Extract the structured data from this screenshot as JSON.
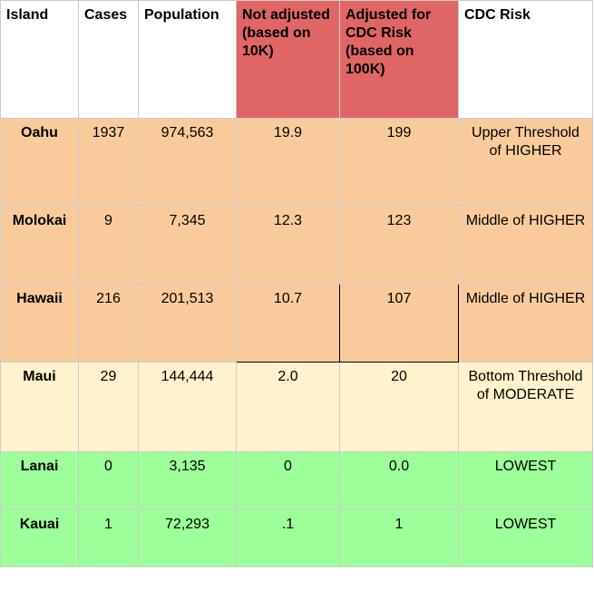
{
  "table": {
    "headers": [
      "Island",
      "Cases",
      "Population",
      "Not adjusted (based on 10K)",
      "Adjusted for CDC Risk (based on 100K)",
      "CDC Risk"
    ],
    "header_colors": [
      "#ffffff",
      "#ffffff",
      "#ffffff",
      "#e06666",
      "#e06666",
      "#ffffff"
    ],
    "rows": [
      {
        "island": "Oahu",
        "cases": "1937",
        "population": "974,563",
        "not_adjusted": "19.9",
        "adjusted": "199",
        "risk": "Upper Threshold of HIGHER",
        "color": "#f9cb9c"
      },
      {
        "island": "Molokai",
        "cases": "9",
        "population": "7,345",
        "not_adjusted": "12.3",
        "adjusted": "123",
        "risk": "Middle of HIGHER",
        "color": "#f9cb9c"
      },
      {
        "island": "Hawaii",
        "cases": "216",
        "population": "201,513",
        "not_adjusted": "10.7",
        "adjusted": "107",
        "risk": "Middle of HIGHER",
        "color": "#f9cb9c"
      },
      {
        "island": "Maui",
        "cases": "29",
        "population": "144,444",
        "not_adjusted": "2.0",
        "adjusted": "20",
        "risk": "Bottom Threshold of MODERATE",
        "color": "#fff2cc"
      },
      {
        "island": "Lanai",
        "cases": "0",
        "population": "3,135",
        "not_adjusted": "0",
        "adjusted": "0.0",
        "risk": "LOWEST",
        "color": "#9dff9a"
      },
      {
        "island": "Kauai",
        "cases": "1",
        "population": "72,293",
        "not_adjusted": ".1",
        "adjusted": "1",
        "risk": "LOWEST",
        "color": "#9dff9a"
      }
    ]
  }
}
